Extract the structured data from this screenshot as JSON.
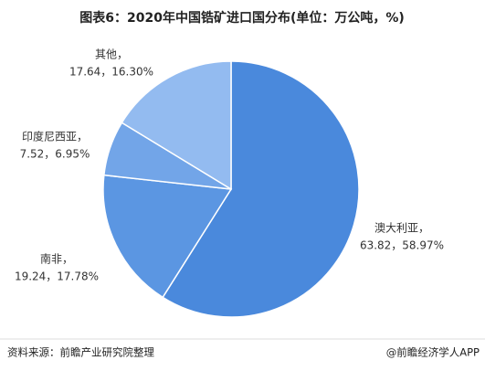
{
  "chart_data": {
    "type": "pie",
    "title": "图表6：2020年中国锆矿进口国分布(单位：万公吨，%)",
    "categories": [
      "澳大利亚，",
      "南非，",
      "印度尼西亚，",
      "其他，"
    ],
    "values": [
      63.82,
      19.24,
      7.52,
      17.64
    ],
    "value_labels": [
      "63.82，58.97%",
      "19.24，17.78%",
      "7.52，6.95%",
      "17.64，16.30%"
    ],
    "colors": [
      "#4a89dc",
      "#5b96e2",
      "#72a5e8",
      "#93bbf0"
    ]
  },
  "footer": {
    "source": "资料来源：前瞻产业研究院整理",
    "brand": "@前瞻经济学人APP"
  }
}
